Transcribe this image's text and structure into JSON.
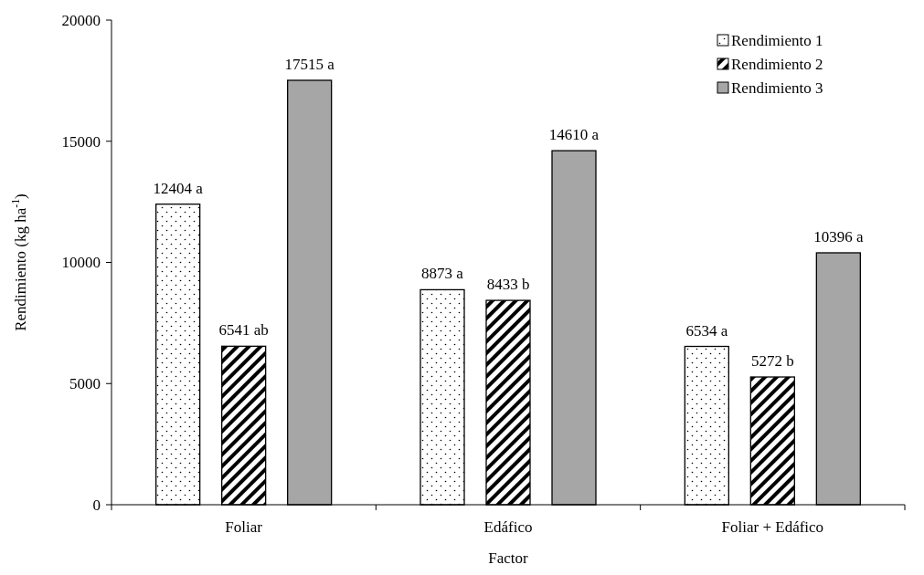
{
  "chart_data": {
    "type": "bar",
    "xlabel": "Factor",
    "ylabel": "Rendimiento (kg ha$^{-1}$)",
    "categories": [
      "Foliar",
      "Edáfico",
      "Foliar + Edáfico"
    ],
    "series": [
      {
        "name": "Rendimiento 1",
        "color": "#000000",
        "values": [
          12404,
          8873,
          6534
        ],
        "value_labels": [
          "12404 a",
          "8873 a",
          "6534 a"
        ]
      },
      {
        "name": "Rendimiento 2",
        "color": "#000000",
        "values": [
          6541,
          8433,
          5272
        ],
        "value_labels": [
          "6541 ab",
          "8433 b",
          "5272 b"
        ]
      },
      {
        "name": "Rendimiento 3",
        "color": "#a6a6a6",
        "values": [
          17515,
          14610,
          10396
        ],
        "value_labels": [
          "17515 a",
          "14610 a",
          "10396 a"
        ]
      }
    ],
    "ylim": [
      0,
      20000
    ],
    "yticks": [
      0,
      5000,
      10000,
      15000,
      20000
    ],
    "legend": "top right"
  }
}
